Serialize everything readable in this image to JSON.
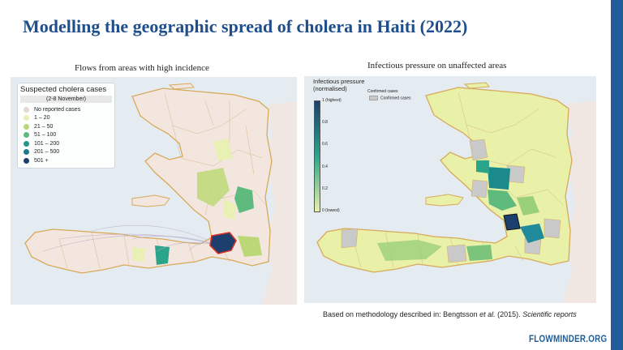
{
  "slide": {
    "title": "Modelling the geographic spread of cholera in Haiti (2022)",
    "brand": "FLOWMINDER.ORG",
    "footnote": {
      "prefix": "Based on methodology described in:  Bengtsson ",
      "et_al": "et al.",
      "year": " (2015). ",
      "journal": "Scientific reports"
    }
  },
  "left_panel": {
    "title": "Flows from areas with high incidence",
    "legend": {
      "title": "Suspected cholera cases",
      "subtitle": "(2-8 November)",
      "items": [
        {
          "label": "No reported cases",
          "color": "#e6d8d0"
        },
        {
          "label": "1 – 20",
          "color": "#e8f0b4"
        },
        {
          "label": "21 – 50",
          "color": "#bcd876"
        },
        {
          "label": "51 – 100",
          "color": "#5fba7d"
        },
        {
          "label": "101 – 200",
          "color": "#1f9a8a"
        },
        {
          "label": "201 – 500",
          "color": "#1a7a8c"
        },
        {
          "label": "501 +",
          "color": "#1c3f6e"
        }
      ]
    }
  },
  "right_panel": {
    "title": "Infectious pressure on unaffected areas",
    "legend": {
      "title_line1": "Infectious pressure",
      "title_line2": "(normalised)",
      "ticks": [
        "1 (highest)",
        "0.8",
        "0.6",
        "0.4",
        "0.2",
        "0 (lowest)"
      ],
      "confirmed_title": "Confirmed cases",
      "confirmed_label": "Confirmed cases",
      "colors": {
        "high": "#1c3f6e",
        "mid": "#2aa58a",
        "low": "#e9f0a8"
      }
    }
  }
}
